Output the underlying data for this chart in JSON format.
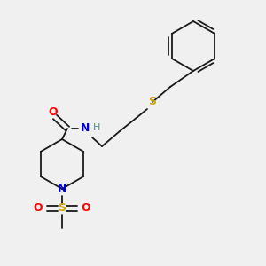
{
  "background_color": "#f0f0f0",
  "bond_color": "#1a1a1a",
  "atom_colors": {
    "O": "#ff0000",
    "N": "#0000cc",
    "S_thioether": "#ccaa00",
    "S_sulfonyl": "#ccaa00",
    "H": "#4a9090",
    "C": "#1a1a1a"
  },
  "figsize": [
    3.0,
    3.0
  ],
  "dpi": 100
}
